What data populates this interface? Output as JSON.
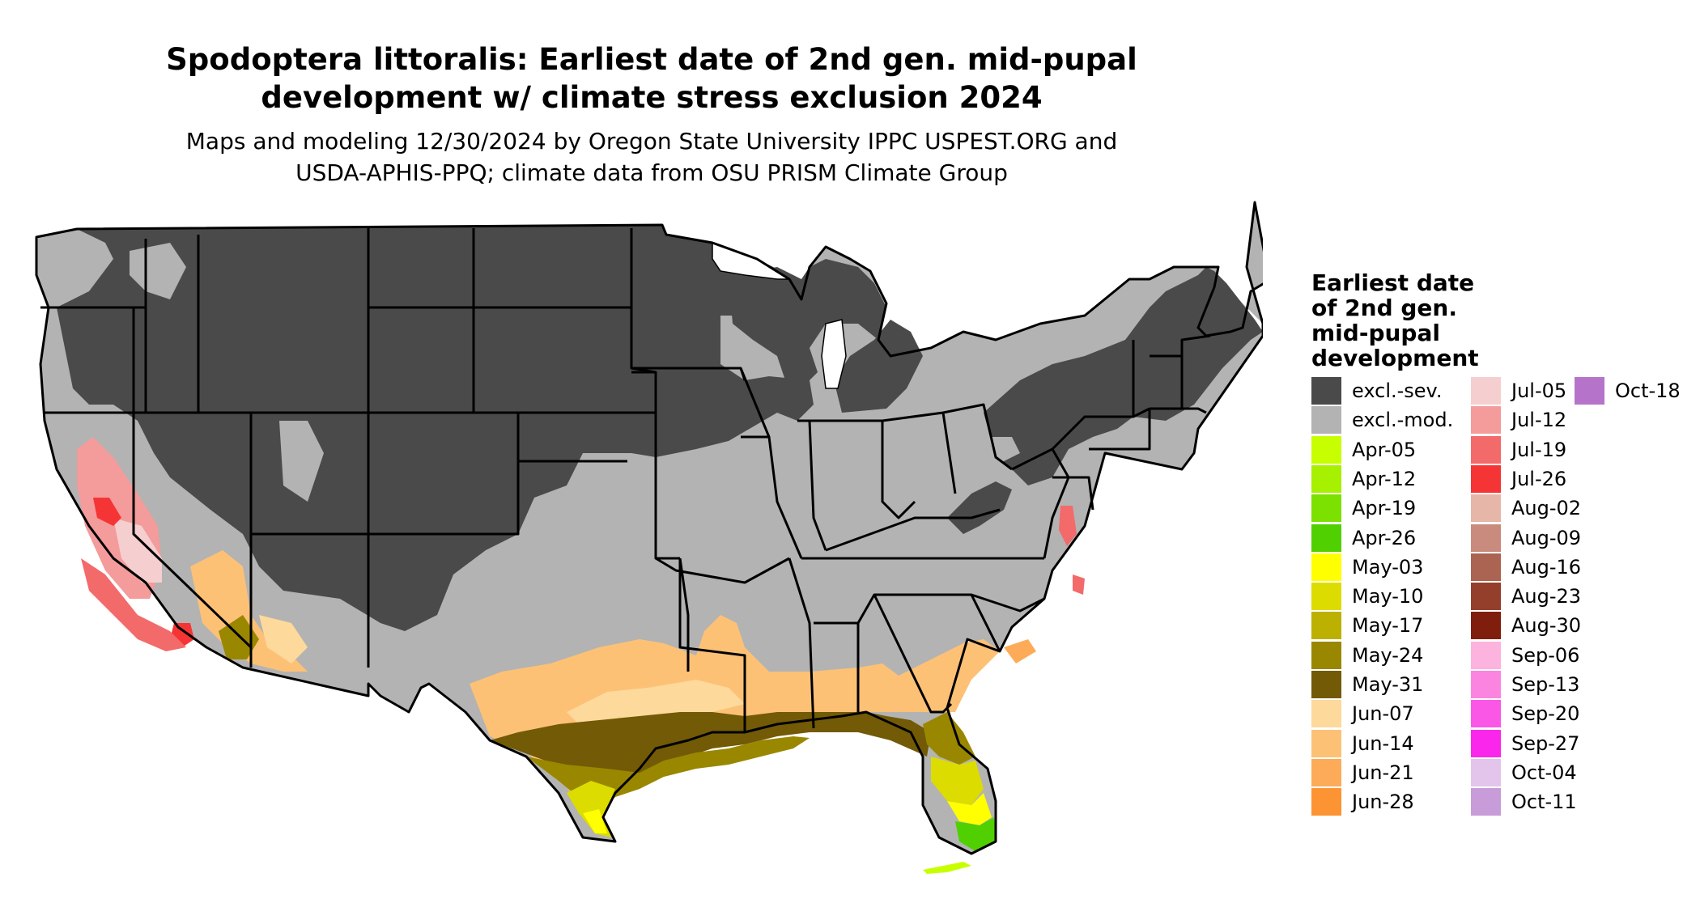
{
  "title_line1": "Spodoptera littoralis: Earliest date of 2nd gen. mid-pupal",
  "title_line2": "development w/ climate stress exclusion 2024",
  "subtitle_line1": "Maps and modeling 12/30/2024 by Oregon State University IPPC USPEST.ORG and",
  "subtitle_line2": "USDA-APHIS-PPQ; climate data from OSU PRISM Climate Group",
  "legend": {
    "title": [
      "Earliest date",
      "of 2nd gen.",
      "mid-pupal",
      "development"
    ],
    "items": [
      {
        "label": "excl.-sev.",
        "color": "#4a4a4a"
      },
      {
        "label": "excl.-mod.",
        "color": "#b3b3b3"
      },
      {
        "label": "Apr-05",
        "color": "#c8ff00"
      },
      {
        "label": "Apr-12",
        "color": "#a6f000"
      },
      {
        "label": "Apr-19",
        "color": "#7ce000"
      },
      {
        "label": "Apr-26",
        "color": "#50d000"
      },
      {
        "label": "May-03",
        "color": "#ffff00"
      },
      {
        "label": "May-10",
        "color": "#dcdc00"
      },
      {
        "label": "May-17",
        "color": "#bcb000"
      },
      {
        "label": "May-24",
        "color": "#9a8700"
      },
      {
        "label": "May-31",
        "color": "#725a06"
      },
      {
        "label": "Jun-07",
        "color": "#fdd99b"
      },
      {
        "label": "Jun-14",
        "color": "#fdc176"
      },
      {
        "label": "Jun-21",
        "color": "#fdab58"
      },
      {
        "label": "Jun-28",
        "color": "#fd9433"
      },
      {
        "label": "Jul-05",
        "color": "#f5cfcf"
      },
      {
        "label": "Jul-12",
        "color": "#f49b9b"
      },
      {
        "label": "Jul-19",
        "color": "#f36a6a"
      },
      {
        "label": "Jul-26",
        "color": "#f53535"
      },
      {
        "label": "Aug-02",
        "color": "#e6b6a9"
      },
      {
        "label": "Aug-09",
        "color": "#c88b7d"
      },
      {
        "label": "Aug-16",
        "color": "#ab6352"
      },
      {
        "label": "Aug-23",
        "color": "#933f2c"
      },
      {
        "label": "Aug-30",
        "color": "#7f1e0c"
      },
      {
        "label": "Sep-06",
        "color": "#fcb3dd"
      },
      {
        "label": "Sep-13",
        "color": "#fb84e1"
      },
      {
        "label": "Sep-20",
        "color": "#fb57e6"
      },
      {
        "label": "Sep-27",
        "color": "#fb26ec"
      },
      {
        "label": "Oct-04",
        "color": "#e3c4ea"
      },
      {
        "label": "Oct-11",
        "color": "#c89bd9"
      },
      {
        "label": "Oct-18",
        "color": "#b574c9"
      }
    ]
  }
}
